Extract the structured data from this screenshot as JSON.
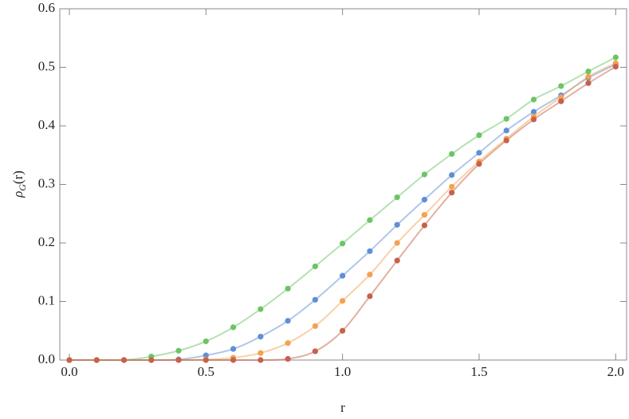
{
  "chart_data": {
    "type": "line",
    "xlabel": "r",
    "ylabel": {
      "symbol": "ρ",
      "subscript": "G",
      "argument": "(r)"
    },
    "x": [
      0.0,
      0.1,
      0.2,
      0.3,
      0.4,
      0.5,
      0.6,
      0.7,
      0.8,
      0.9,
      1.0,
      1.1,
      1.2,
      1.3,
      1.4,
      1.5,
      1.6,
      1.7,
      1.8,
      1.9,
      2.0
    ],
    "series": [
      {
        "color": "#6cc465",
        "values": [
          0,
          0,
          0,
          0.006,
          0.016,
          0.032,
          0.056,
          0.087,
          0.122,
          0.16,
          0.199,
          0.239,
          0.278,
          0.317,
          0.352,
          0.384,
          0.412,
          0.445,
          0.468,
          0.493,
          0.517
        ]
      },
      {
        "color": "#5f8fd6",
        "values": [
          0,
          0,
          0,
          0,
          0.001,
          0.008,
          0.019,
          0.04,
          0.067,
          0.103,
          0.144,
          0.186,
          0.231,
          0.274,
          0.316,
          0.354,
          0.392,
          0.424,
          0.452,
          0.482,
          0.505
        ]
      },
      {
        "color": "#f3a24f",
        "values": [
          0,
          0,
          0,
          0,
          0,
          0.001,
          0.004,
          0.012,
          0.029,
          0.058,
          0.101,
          0.146,
          0.2,
          0.248,
          0.296,
          0.339,
          0.378,
          0.416,
          0.449,
          0.484,
          0.507
        ]
      },
      {
        "color": "#c8604a",
        "values": [
          0,
          0,
          0,
          0,
          0,
          0,
          0,
          0,
          0.002,
          0.015,
          0.05,
          0.109,
          0.17,
          0.23,
          0.286,
          0.335,
          0.375,
          0.411,
          0.442,
          0.473,
          0.501
        ]
      }
    ],
    "xlim": [
      -0.035,
      2.04
    ],
    "ylim": [
      0,
      0.6
    ],
    "xticks": [
      {
        "value": 0,
        "label": "0.0"
      },
      0.5,
      {
        "value": 1,
        "label": "1.0"
      },
      1.5,
      {
        "value": 2,
        "label": "2.0"
      }
    ],
    "yticks": [
      {
        "value": 0,
        "label": "0.0"
      },
      0.1,
      0.2,
      0.3,
      0.4,
      0.5,
      0.6
    ],
    "grid": false
  }
}
